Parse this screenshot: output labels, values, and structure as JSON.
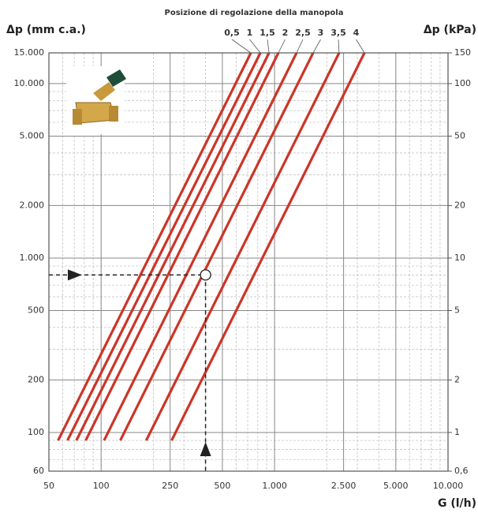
{
  "chart_data": {
    "type": "line",
    "title": "Posizione di regolazione della manopola",
    "y_label": "Δp (mm c.a.)",
    "y2_label": "Δp (kPa)",
    "x_label": "G (l/h)",
    "log_x": true,
    "log_y": true,
    "grid": true,
    "minor_grid": true,
    "xlim": [
      50,
      10000
    ],
    "xticks": [
      50,
      100,
      250,
      500,
      {
        "value": 1000,
        "label": "1.000"
      },
      {
        "value": 2500,
        "label": "2.500"
      },
      {
        "value": 5000,
        "label": "5.000"
      },
      {
        "value": 10000,
        "label": "10.000"
      }
    ],
    "ylim": [
      60,
      15000
    ],
    "yticks": [
      60,
      100,
      200,
      500,
      {
        "value": 1000,
        "label": "1.000"
      },
      {
        "value": 2000,
        "label": "2.000"
      },
      {
        "value": 5000,
        "label": "5.000"
      },
      {
        "value": 10000,
        "label": "10.000"
      },
      {
        "value": 15000,
        "label": "15.000"
      }
    ],
    "y2lim": [
      0.6,
      150
    ],
    "y2ticks": [
      {
        "value": 0.6,
        "label": "0,6"
      },
      1,
      2,
      5,
      10,
      20,
      50,
      100,
      150
    ],
    "series": [
      {
        "name": "0,5",
        "color": "#cc3528",
        "x": [
          56.5,
          730
        ],
        "y": [
          90,
          15000
        ]
      },
      {
        "name": "1",
        "color": "#cc3528",
        "x": [
          64,
          828
        ],
        "y": [
          90,
          15000
        ]
      },
      {
        "name": "1,5",
        "color": "#cc3528",
        "x": [
          72,
          929
        ],
        "y": [
          90,
          15000
        ]
      },
      {
        "name": "2",
        "color": "#cc3528",
        "x": [
          81.5,
          1052
        ],
        "y": [
          90,
          15000
        ]
      },
      {
        "name": "2,5",
        "color": "#cc3528",
        "x": [
          104,
          1339
        ],
        "y": [
          90,
          15000
        ]
      },
      {
        "name": "3",
        "color": "#cc3528",
        "x": [
          129,
          1668
        ],
        "y": [
          90,
          15000
        ]
      },
      {
        "name": "3,5",
        "color": "#cc3528",
        "x": [
          182,
          2355
        ],
        "y": [
          90,
          15000
        ]
      },
      {
        "name": "4",
        "color": "#cc3528",
        "x": [
          255,
          3296
        ],
        "y": [
          90,
          15000
        ]
      }
    ],
    "example": {
      "x": 400,
      "y": 800
    }
  }
}
